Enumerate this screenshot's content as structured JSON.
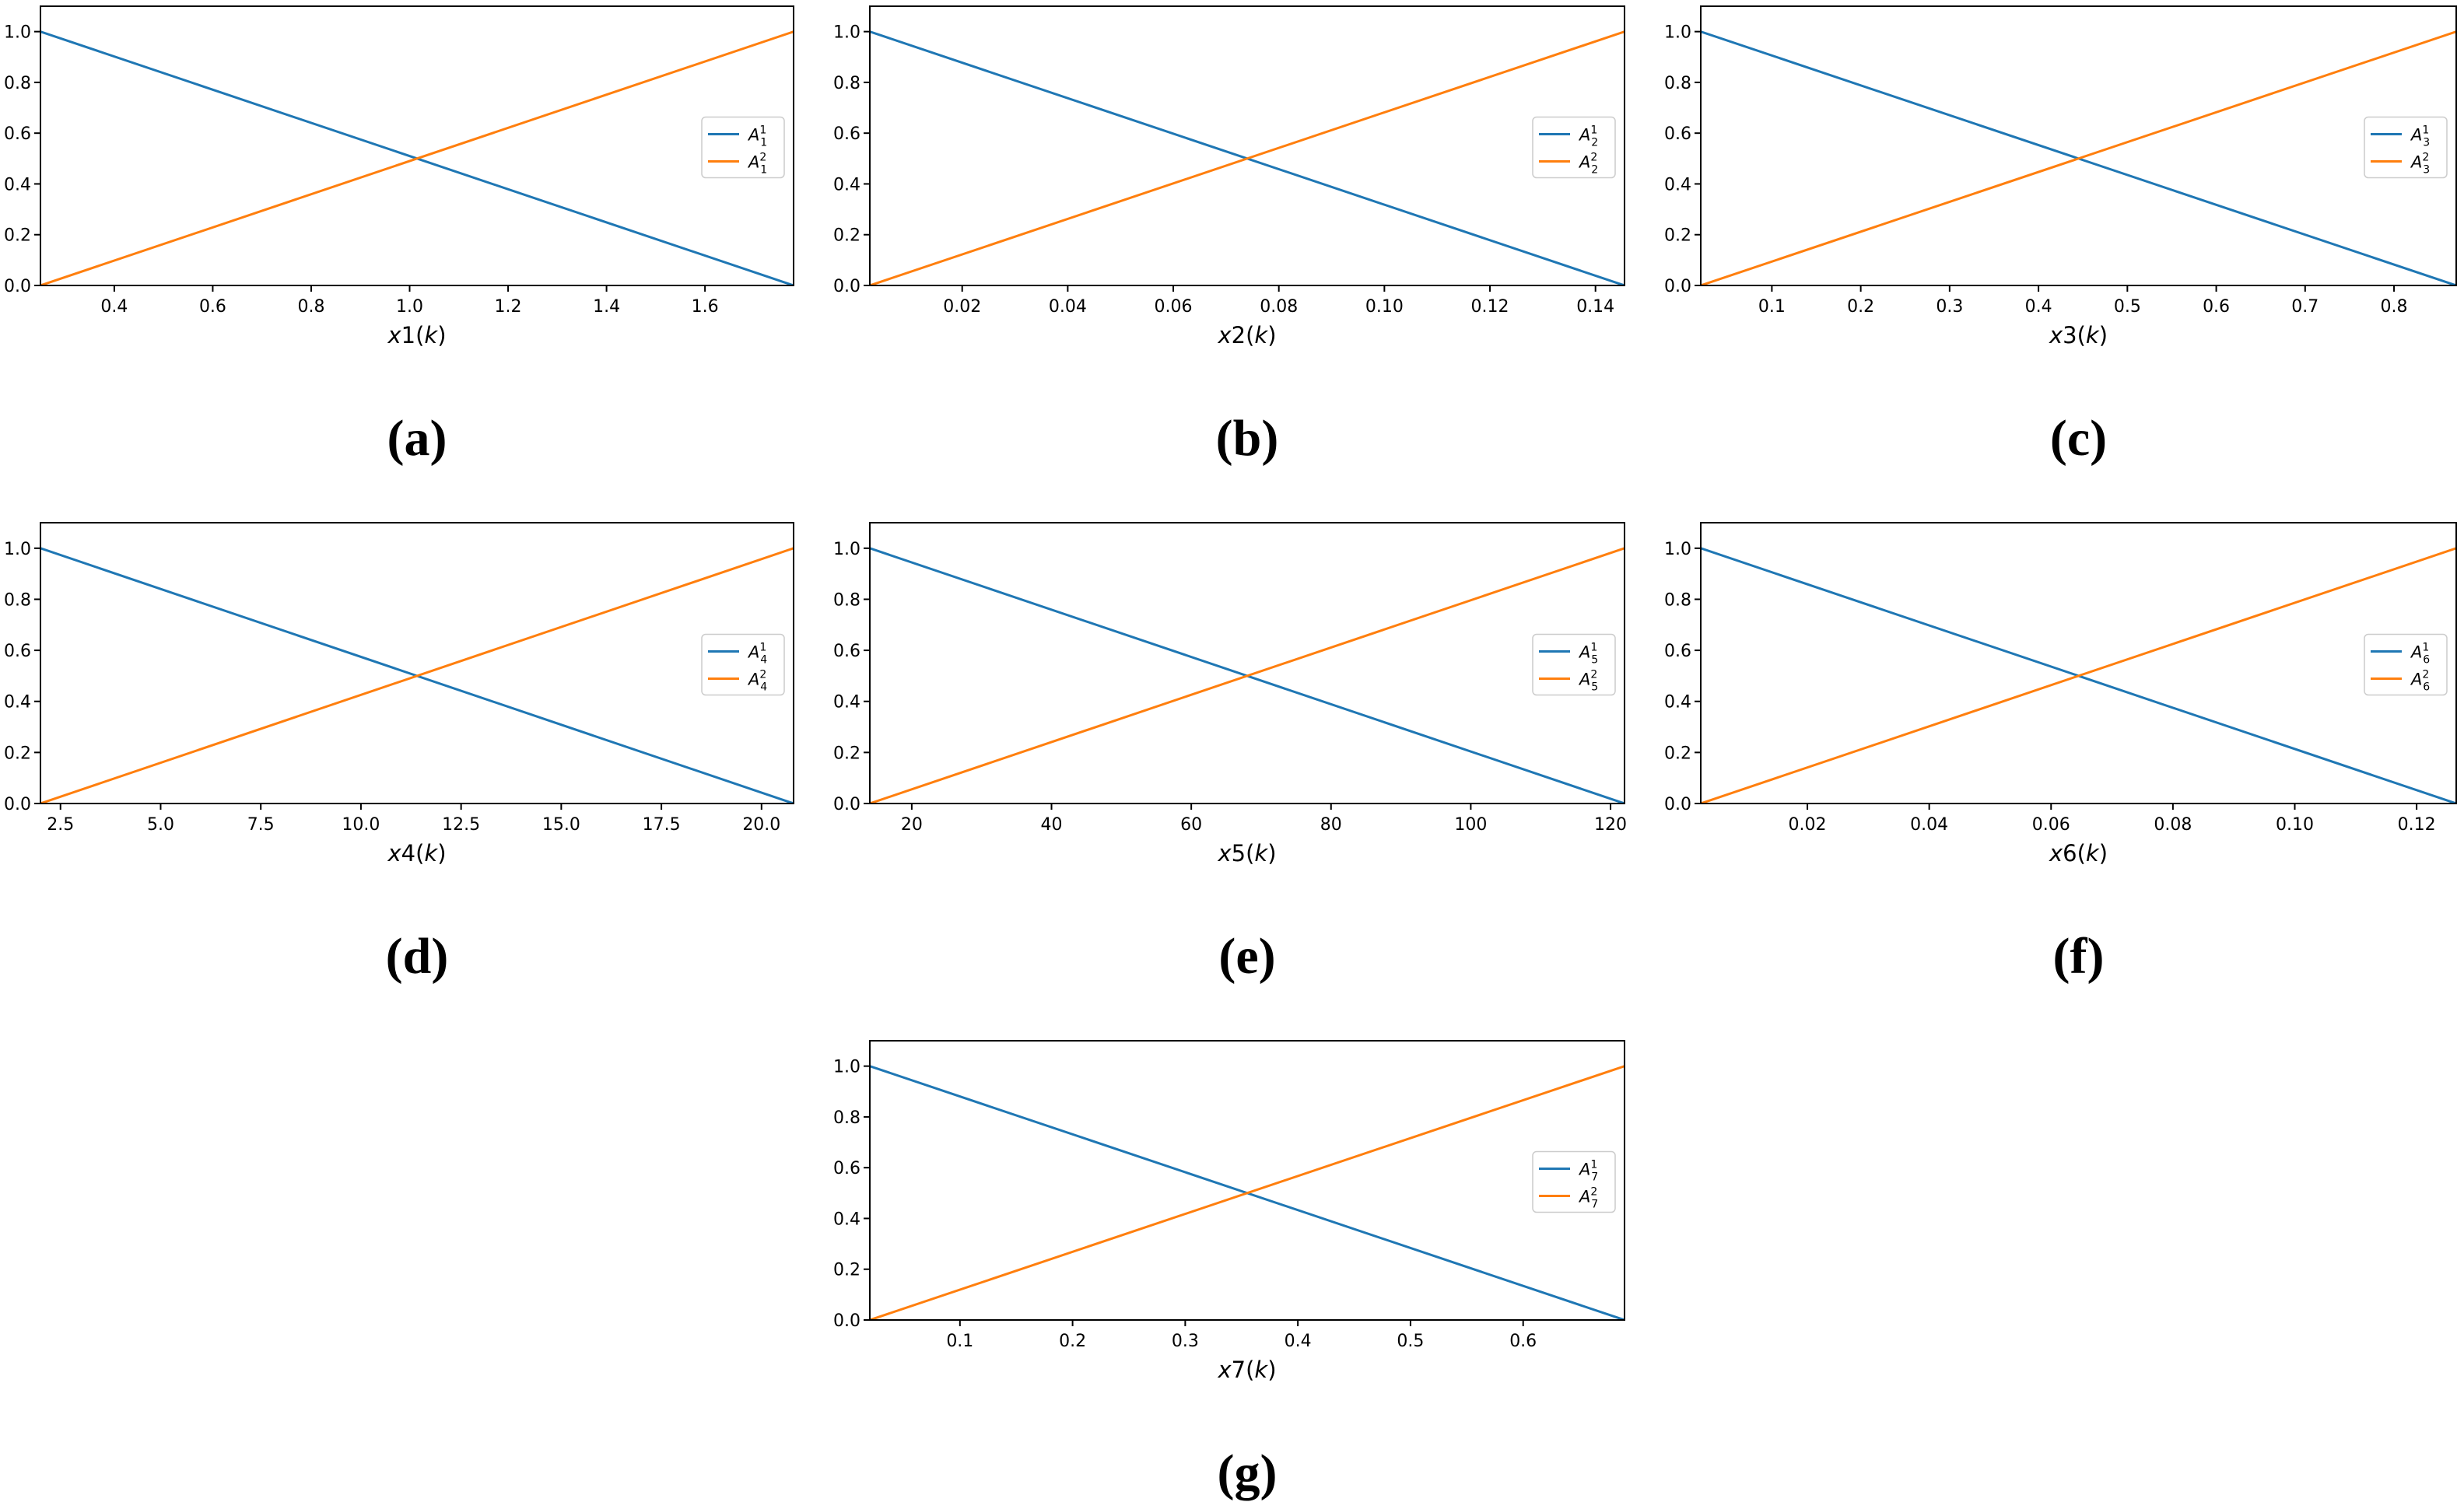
{
  "chart_data": [
    {
      "type": "line",
      "caption": "(a)",
      "xlabel_var": "x1",
      "xlabel_arg": "k",
      "xlim": [
        0.25,
        1.78
      ],
      "ylim": [
        0,
        1.1
      ],
      "xticks": [
        0.4,
        0.6,
        0.8,
        1.0,
        1.2,
        1.4,
        1.6
      ],
      "xtick_labels": [
        "0.4",
        "0.6",
        "0.8",
        "1.0",
        "1.2",
        "1.4",
        "1.6"
      ],
      "yticks": [
        0.0,
        0.2,
        0.4,
        0.6,
        0.8,
        1.0
      ],
      "ytick_labels": [
        "0.0",
        "0.2",
        "0.4",
        "0.6",
        "0.8",
        "1.0"
      ],
      "legend_position": "center-right",
      "series": [
        {
          "name": "A",
          "sub": "1",
          "sup": "1",
          "color": "#1f77b4",
          "x": [
            0.25,
            1.78
          ],
          "y": [
            1.0,
            0.0
          ]
        },
        {
          "name": "A",
          "sub": "1",
          "sup": "2",
          "color": "#ff7f0e",
          "x": [
            0.25,
            1.78
          ],
          "y": [
            0.0,
            1.0
          ]
        }
      ]
    },
    {
      "type": "line",
      "caption": "(b)",
      "xlabel_var": "x2",
      "xlabel_arg": "k",
      "xlim": [
        0.0025,
        0.1455
      ],
      "ylim": [
        0,
        1.1
      ],
      "xticks": [
        0.02,
        0.04,
        0.06,
        0.08,
        0.1,
        0.12,
        0.14
      ],
      "xtick_labels": [
        "0.02",
        "0.04",
        "0.06",
        "0.08",
        "0.10",
        "0.12",
        "0.14"
      ],
      "yticks": [
        0.0,
        0.2,
        0.4,
        0.6,
        0.8,
        1.0
      ],
      "ytick_labels": [
        "0.0",
        "0.2",
        "0.4",
        "0.6",
        "0.8",
        "1.0"
      ],
      "legend_position": "center-right",
      "series": [
        {
          "name": "A",
          "sub": "2",
          "sup": "1",
          "color": "#1f77b4",
          "x": [
            0.0025,
            0.1455
          ],
          "y": [
            1.0,
            0.0
          ]
        },
        {
          "name": "A",
          "sub": "2",
          "sup": "2",
          "color": "#ff7f0e",
          "x": [
            0.0025,
            0.1455
          ],
          "y": [
            0.0,
            1.0
          ]
        }
      ]
    },
    {
      "type": "line",
      "caption": "(c)",
      "xlabel_var": "x3",
      "xlabel_arg": "k",
      "xlim": [
        0.02,
        0.87
      ],
      "ylim": [
        0,
        1.1
      ],
      "xticks": [
        0.1,
        0.2,
        0.3,
        0.4,
        0.5,
        0.6,
        0.7,
        0.8
      ],
      "xtick_labels": [
        "0.1",
        "0.2",
        "0.3",
        "0.4",
        "0.5",
        "0.6",
        "0.7",
        "0.8"
      ],
      "yticks": [
        0.0,
        0.2,
        0.4,
        0.6,
        0.8,
        1.0
      ],
      "ytick_labels": [
        "0.0",
        "0.2",
        "0.4",
        "0.6",
        "0.8",
        "1.0"
      ],
      "legend_position": "center-right",
      "series": [
        {
          "name": "A",
          "sub": "3",
          "sup": "1",
          "color": "#1f77b4",
          "x": [
            0.02,
            0.87
          ],
          "y": [
            1.0,
            0.0
          ]
        },
        {
          "name": "A",
          "sub": "3",
          "sup": "2",
          "color": "#ff7f0e",
          "x": [
            0.02,
            0.87
          ],
          "y": [
            0.0,
            1.0
          ]
        }
      ]
    },
    {
      "type": "line",
      "caption": "(d)",
      "xlabel_var": "x4",
      "xlabel_arg": "k",
      "xlim": [
        2.0,
        20.8
      ],
      "ylim": [
        0,
        1.1
      ],
      "xticks": [
        2.5,
        5.0,
        7.5,
        10.0,
        12.5,
        15.0,
        17.5,
        20.0
      ],
      "xtick_labels": [
        "2.5",
        "5.0",
        "7.5",
        "10.0",
        "12.5",
        "15.0",
        "17.5",
        "20.0"
      ],
      "yticks": [
        0.0,
        0.2,
        0.4,
        0.6,
        0.8,
        1.0
      ],
      "ytick_labels": [
        "0.0",
        "0.2",
        "0.4",
        "0.6",
        "0.8",
        "1.0"
      ],
      "legend_position": "center-right",
      "series": [
        {
          "name": "A",
          "sub": "4",
          "sup": "1",
          "color": "#1f77b4",
          "x": [
            2.0,
            20.8
          ],
          "y": [
            1.0,
            0.0
          ]
        },
        {
          "name": "A",
          "sub": "4",
          "sup": "2",
          "color": "#ff7f0e",
          "x": [
            2.0,
            20.8
          ],
          "y": [
            0.0,
            1.0
          ]
        }
      ]
    },
    {
      "type": "line",
      "caption": "(e)",
      "xlabel_var": "x5",
      "xlabel_arg": "k",
      "xlim": [
        14.0,
        122.0
      ],
      "ylim": [
        0,
        1.1
      ],
      "xticks": [
        20,
        40,
        60,
        80,
        100,
        120
      ],
      "xtick_labels": [
        "20",
        "40",
        "60",
        "80",
        "100",
        "120"
      ],
      "yticks": [
        0.0,
        0.2,
        0.4,
        0.6,
        0.8,
        1.0
      ],
      "ytick_labels": [
        "0.0",
        "0.2",
        "0.4",
        "0.6",
        "0.8",
        "1.0"
      ],
      "legend_position": "center-right",
      "series": [
        {
          "name": "A",
          "sub": "5",
          "sup": "1",
          "color": "#1f77b4",
          "x": [
            14.0,
            122.0
          ],
          "y": [
            1.0,
            0.0
          ]
        },
        {
          "name": "A",
          "sub": "5",
          "sup": "2",
          "color": "#ff7f0e",
          "x": [
            14.0,
            122.0
          ],
          "y": [
            0.0,
            1.0
          ]
        }
      ]
    },
    {
      "type": "line",
      "caption": "(f)",
      "xlabel_var": "x6",
      "xlabel_arg": "k",
      "xlim": [
        0.0025,
        0.1265
      ],
      "ylim": [
        0,
        1.1
      ],
      "xticks": [
        0.02,
        0.04,
        0.06,
        0.08,
        0.1,
        0.12
      ],
      "xtick_labels": [
        "0.02",
        "0.04",
        "0.06",
        "0.08",
        "0.10",
        "0.12"
      ],
      "yticks": [
        0.0,
        0.2,
        0.4,
        0.6,
        0.8,
        1.0
      ],
      "ytick_labels": [
        "0.0",
        "0.2",
        "0.4",
        "0.6",
        "0.8",
        "1.0"
      ],
      "legend_position": "center-right",
      "series": [
        {
          "name": "A",
          "sub": "6",
          "sup": "1",
          "color": "#1f77b4",
          "x": [
            0.0025,
            0.1265
          ],
          "y": [
            1.0,
            0.0
          ]
        },
        {
          "name": "A",
          "sub": "6",
          "sup": "2",
          "color": "#ff7f0e",
          "x": [
            0.0025,
            0.1265
          ],
          "y": [
            0.0,
            1.0
          ]
        }
      ]
    },
    {
      "type": "line",
      "caption": "(g)",
      "xlabel_var": "x7",
      "xlabel_arg": "k",
      "xlim": [
        0.02,
        0.69
      ],
      "ylim": [
        0,
        1.1
      ],
      "xticks": [
        0.1,
        0.2,
        0.3,
        0.4,
        0.5,
        0.6
      ],
      "xtick_labels": [
        "0.1",
        "0.2",
        "0.3",
        "0.4",
        "0.5",
        "0.6"
      ],
      "yticks": [
        0.0,
        0.2,
        0.4,
        0.6,
        0.8,
        1.0
      ],
      "ytick_labels": [
        "0.0",
        "0.2",
        "0.4",
        "0.6",
        "0.8",
        "1.0"
      ],
      "legend_position": "center-right",
      "series": [
        {
          "name": "A",
          "sub": "7",
          "sup": "1",
          "color": "#1f77b4",
          "x": [
            0.02,
            0.69
          ],
          "y": [
            1.0,
            0.0
          ]
        },
        {
          "name": "A",
          "sub": "7",
          "sup": "2",
          "color": "#ff7f0e",
          "x": [
            0.02,
            0.69
          ],
          "y": [
            0.0,
            1.0
          ]
        }
      ]
    }
  ]
}
